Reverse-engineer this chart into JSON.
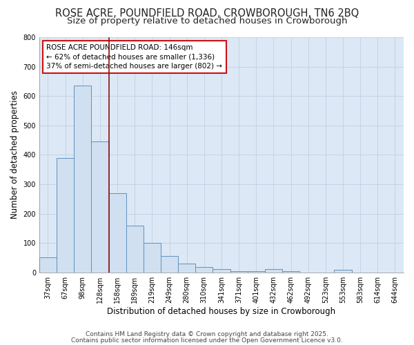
{
  "title_line1": "ROSE ACRE, POUNDFIELD ROAD, CROWBOROUGH, TN6 2BQ",
  "title_line2": "Size of property relative to detached houses in Crowborough",
  "xlabel": "Distribution of detached houses by size in Crowborough",
  "ylabel": "Number of detached properties",
  "categories": [
    "37sqm",
    "67sqm",
    "98sqm",
    "128sqm",
    "158sqm",
    "189sqm",
    "219sqm",
    "249sqm",
    "280sqm",
    "310sqm",
    "341sqm",
    "371sqm",
    "401sqm",
    "432sqm",
    "462sqm",
    "492sqm",
    "523sqm",
    "553sqm",
    "583sqm",
    "614sqm",
    "644sqm"
  ],
  "values": [
    50,
    390,
    635,
    445,
    270,
    160,
    100,
    55,
    30,
    18,
    10,
    5,
    3,
    12,
    3,
    0,
    0,
    8,
    0,
    0,
    0
  ],
  "bar_color": "#d0e0f0",
  "bar_edge_color": "#6090c0",
  "vline_x": 3.5,
  "vline_color": "#8b1010",
  "annotation_text": "ROSE ACRE POUNDFIELD ROAD: 146sqm\n← 62% of detached houses are smaller (1,336)\n37% of semi-detached houses are larger (802) →",
  "annotation_box_facecolor": "#ffffff",
  "annotation_box_edgecolor": "#cc1111",
  "ylim": [
    0,
    800
  ],
  "yticks": [
    0,
    100,
    200,
    300,
    400,
    500,
    600,
    700,
    800
  ],
  "plot_bg_color": "#dce8f5",
  "fig_bg_color": "#ffffff",
  "grid_color": "#c0cfe0",
  "footer_line1": "Contains HM Land Registry data © Crown copyright and database right 2025.",
  "footer_line2": "Contains public sector information licensed under the Open Government Licence v3.0.",
  "title_fontsize": 10.5,
  "subtitle_fontsize": 9.5,
  "axis_label_fontsize": 8.5,
  "tick_fontsize": 7,
  "annotation_fontsize": 7.5,
  "footer_fontsize": 6.5
}
